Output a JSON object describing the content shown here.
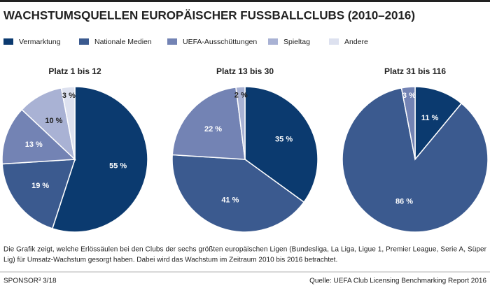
{
  "title": "WACHSTUMSQUELLEN EUROPÄISCHER FUSSBALLCLUBS (2010–2016)",
  "categories": [
    "Vermarktung",
    "Nationale Medien",
    "UEFA-Ausschüttungen",
    "Spieltag",
    "Andere"
  ],
  "colors": [
    "#0b3a6f",
    "#3b5a8f",
    "#7383b4",
    "#a9b2d4",
    "#dde1ef"
  ],
  "chart_data": [
    {
      "type": "pie",
      "title": "Platz 1 bis 12",
      "values": [
        55,
        19,
        13,
        10,
        3
      ],
      "value_labels": [
        "55 %",
        "19 %",
        "13 %",
        "10 %",
        "3 %"
      ]
    },
    {
      "type": "pie",
      "title": "Platz 13 bis 30",
      "values": [
        35,
        41,
        22,
        2,
        null
      ],
      "value_labels": [
        "35 %",
        "41 %",
        "22 %",
        "2 %",
        null
      ]
    },
    {
      "type": "pie",
      "title": "Platz 31 bis 116",
      "values": [
        11,
        86,
        3,
        null,
        null
      ],
      "value_labels": [
        "11 %",
        "86 %",
        "3 %",
        null,
        null
      ]
    }
  ],
  "caption": [
    "Die Grafik zeigt, welche Erlössäulen bei den Clubs der sechs größten europäischen Ligen (Bundesliga, La Liga, Ligue 1, Premier League, Serie A, Süper",
    "Lig) für Umsatz-Wachstum gesorgt haben. Dabei wird das Wachstum im Zeitraum 2010 bis 2016 betrachtet."
  ],
  "footer": "SPONSOR³ 3/18",
  "source": "Quelle: UEFA Club Licensing Benchmarking Report 2016"
}
